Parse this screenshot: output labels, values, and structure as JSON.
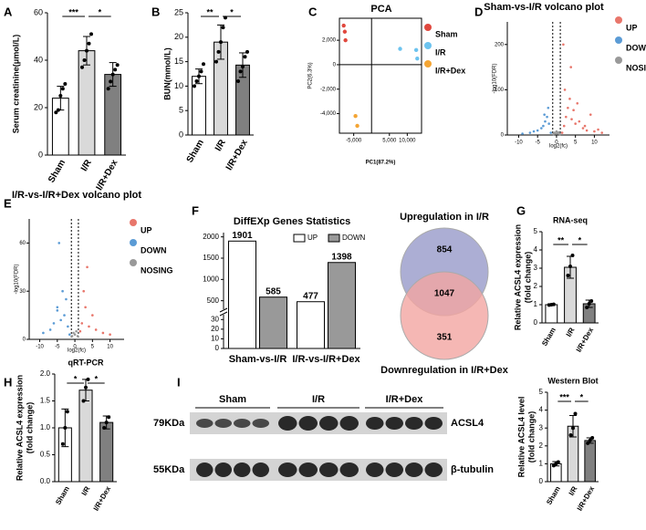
{
  "panel_labels": [
    "A",
    "B",
    "C",
    "D",
    "E",
    "F",
    "G",
    "H",
    "I"
  ],
  "blot": {
    "markers": [
      "79KDa",
      "55KDa"
    ],
    "groups": [
      "Sham",
      "I/R",
      "I/R+Dex"
    ],
    "proteins": [
      "ACSL4",
      "β-tubulin"
    ]
  },
  "chart_data": [
    {
      "type": "bar",
      "ylabel": "Serum creatinine(μmol/L)",
      "categories": [
        "Sham",
        "I/R",
        "I/R+Dex"
      ],
      "values": [
        24,
        44,
        34
      ],
      "errors": [
        5,
        6,
        5
      ],
      "points": [
        [
          18,
          19,
          25,
          28,
          30
        ],
        [
          37,
          40,
          44,
          47,
          51
        ],
        [
          28,
          31,
          34,
          36,
          38
        ]
      ],
      "colors": [
        "#ffffff",
        "#d9d9d9",
        "#808080"
      ],
      "ylim": [
        0,
        60
      ],
      "yticks": [
        0,
        20,
        40,
        60
      ],
      "significance": [
        "***",
        "*"
      ]
    },
    {
      "type": "bar",
      "ylabel": "BUN(mmol/L)",
      "categories": [
        "Sham",
        "I/R",
        "I/R+Dex"
      ],
      "values": [
        12,
        19,
        14.3
      ],
      "errors": [
        1.5,
        3.5,
        2.5
      ],
      "points": [
        [
          10,
          11,
          12,
          13,
          14.5
        ],
        [
          15,
          17,
          19,
          22,
          24
        ],
        [
          11,
          13,
          14,
          16,
          17
        ]
      ],
      "colors": [
        "#ffffff",
        "#d9d9d9",
        "#808080"
      ],
      "ylim": [
        0,
        25
      ],
      "yticks": [
        0,
        5,
        10,
        15,
        20,
        25
      ],
      "significance": [
        "**",
        "*"
      ]
    },
    {
      "type": "scatter",
      "title": "PCA",
      "xlabel": "PC1(87.2%)",
      "ylabel": "PC2(6.3%)",
      "frame": true,
      "zero_lines": true,
      "xlim": [
        -9000,
        14000
      ],
      "ylim": [
        -5600,
        3800
      ],
      "xticks": [
        {
          "value": -5000,
          "label": "-5,000"
        },
        {
          "value": 5000,
          "label": "5,000"
        },
        {
          "value": 10000,
          "label": "10,000"
        }
      ],
      "yticks": [
        {
          "value": -4000,
          "label": "-4,000"
        },
        {
          "value": -2000,
          "label": "-2,000"
        },
        0,
        {
          "value": 2000,
          "label": "2,000"
        }
      ],
      "series": [
        {
          "name": "Sham",
          "color": "#e0483e",
          "x": [
            -7800,
            -7500,
            -7300
          ],
          "y": [
            3200,
            2700,
            2000
          ]
        },
        {
          "name": "I/R",
          "color": "#6cc3ef",
          "x": [
            8000,
            12500,
            12800
          ],
          "y": [
            1300,
            1200,
            500
          ]
        },
        {
          "name": "I/R+Dex",
          "color": "#f4a534",
          "x": [
            -4500,
            -4000
          ],
          "y": [
            -4200,
            -5000
          ]
        }
      ]
    },
    {
      "type": "scatter",
      "title": "Sham-vs-I/R volcano plot",
      "xlabel": "log2(fc)",
      "ylabel": "-log10(FDR)",
      "frame": false,
      "vlines": [
        -1,
        1
      ],
      "xlim": [
        -13,
        14
      ],
      "ylim": [
        0,
        250
      ],
      "xticks": [
        -10,
        -5,
        0,
        5,
        10
      ],
      "yticks": [
        0,
        100,
        200
      ],
      "series": [
        {
          "name": "UP",
          "color": "#e8766b",
          "x": [
            1.5,
            2,
            2.5,
            3,
            3.5,
            4,
            4.5,
            5,
            6,
            7,
            8,
            9,
            10,
            11,
            12,
            2.2,
            3.8,
            5.5,
            7.5,
            1.8
          ],
          "y": [
            5,
            20,
            40,
            60,
            80,
            35,
            55,
            25,
            30,
            15,
            10,
            45,
            8,
            12,
            5,
            100,
            150,
            70,
            20,
            200
          ]
        },
        {
          "name": "DOWN",
          "color": "#5b9bd5",
          "x": [
            -1.5,
            -2,
            -2.5,
            -3,
            -3.5,
            -4,
            -5,
            -6,
            -7,
            -9,
            -2.2,
            -3.2
          ],
          "y": [
            5,
            25,
            40,
            30,
            20,
            15,
            10,
            8,
            5,
            3,
            60,
            45
          ]
        },
        {
          "name": "NOSING",
          "color": "#999999",
          "x": [
            -0.8,
            -0.5,
            -0.2,
            0,
            0.3,
            0.6,
            0.9
          ],
          "y": [
            2,
            5,
            3,
            8,
            4,
            6,
            2
          ]
        }
      ]
    },
    {
      "type": "scatter",
      "title": "I/R-vs-I/R+Dex volcano plot",
      "xlabel": "log2(fc)",
      "ylabel": "-log10(FDR)",
      "frame": false,
      "vlines": [
        -1,
        1
      ],
      "xlim": [
        -13,
        14
      ],
      "ylim": [
        0,
        75
      ],
      "xticks": [
        -10,
        -5,
        0,
        5,
        10
      ],
      "yticks": [
        0,
        30,
        60
      ],
      "series": [
        {
          "name": "UP",
          "color": "#e8766b",
          "x": [
            1.5,
            2,
            3,
            4,
            5,
            6,
            8,
            10,
            2.5,
            3.5
          ],
          "y": [
            5,
            10,
            20,
            8,
            15,
            6,
            4,
            3,
            30,
            45
          ]
        },
        {
          "name": "DOWN",
          "color": "#5b9bd5",
          "x": [
            -1.5,
            -2,
            -3,
            -4,
            -5,
            -6,
            -7,
            -9,
            -2.5,
            -3.5,
            -4.5,
            -5
          ],
          "y": [
            3,
            8,
            15,
            12,
            20,
            10,
            6,
            4,
            25,
            30,
            60,
            18
          ]
        },
        {
          "name": "NOSING",
          "color": "#999999",
          "x": [
            -0.8,
            -0.4,
            0,
            0.4,
            0.8
          ],
          "y": [
            2,
            4,
            3,
            5,
            2
          ]
        }
      ]
    },
    {
      "type": "grouped_bar",
      "title": "DiffEXp Genes Statistics",
      "categories": [
        "Sham-vs-I/R",
        "I/R-vs-I/R+Dex"
      ],
      "ylim": [
        0,
        2100
      ],
      "ybreak": [
        35,
        300
      ],
      "yticks": [
        0,
        10,
        20,
        30,
        500,
        1000,
        1500,
        2000
      ],
      "series": [
        {
          "name": "UP",
          "color": "#ffffff",
          "values": [
            1901,
            477
          ]
        },
        {
          "name": "DOWN",
          "color": "#999999",
          "values": [
            585,
            1398
          ]
        }
      ]
    },
    {
      "type": "venn",
      "sets": [
        "Upregulation in I/R",
        "Downregulation in I/R+Dex"
      ],
      "values": [
        854,
        1047,
        351
      ],
      "colors": [
        "#9ea0cc",
        "#f2a5a1"
      ]
    },
    {
      "type": "bar",
      "title": "RNA-seq",
      "ylabel": [
        "Relative ACSL4 expression",
        "(fold change)"
      ],
      "categories": [
        "Sham",
        "I/R",
        "I/R+Dex"
      ],
      "values": [
        1.0,
        3.05,
        1.05
      ],
      "errors": [
        0.05,
        0.6,
        0.2
      ],
      "points": [
        [
          0.98,
          1.0,
          1.02
        ],
        [
          2.6,
          3.1,
          3.7
        ],
        [
          0.85,
          1.05,
          1.2
        ]
      ],
      "colors": [
        "#ffffff",
        "#d9d9d9",
        "#808080"
      ],
      "ylim": [
        0,
        5
      ],
      "yticks": [
        0,
        1,
        2,
        3,
        4,
        5
      ],
      "significance": [
        "**",
        "*"
      ]
    },
    {
      "type": "bar",
      "title": "qRT-PCR",
      "ylabel": [
        "Relative ACSL4 expression",
        "(fold change)"
      ],
      "categories": [
        "Sham",
        "I/R",
        "I/R+Dex"
      ],
      "values": [
        1.0,
        1.7,
        1.1
      ],
      "errors": [
        0.35,
        0.2,
        0.12
      ],
      "points": [
        [
          0.7,
          1.0,
          1.3
        ],
        [
          1.5,
          1.75,
          1.9
        ],
        [
          1.0,
          1.1,
          1.2
        ]
      ],
      "colors": [
        "#ffffff",
        "#d9d9d9",
        "#808080"
      ],
      "ylim": [
        0,
        2
      ],
      "yticks": [
        {
          "value": 0,
          "label": "0.0"
        },
        {
          "value": 0.5,
          "label": "0.5"
        },
        {
          "value": 1,
          "label": "1.0"
        },
        {
          "value": 1.5,
          "label": "1.5"
        },
        {
          "value": 2,
          "label": "2.0"
        }
      ],
      "significance": [
        "*",
        "*"
      ]
    },
    {
      "type": "bar",
      "title": "Western Blot",
      "ylabel": [
        "Relative ACSL4 level",
        "(fold change)"
      ],
      "categories": [
        "Sham",
        "I/R",
        "I/R+Dex"
      ],
      "values": [
        1.0,
        3.1,
        2.3
      ],
      "errors": [
        0.12,
        0.6,
        0.15
      ],
      "points": [
        [
          0.9,
          1.0,
          1.1
        ],
        [
          2.6,
          3.0,
          3.8
        ],
        [
          2.15,
          2.3,
          2.45
        ]
      ],
      "colors": [
        "#ffffff",
        "#d9d9d9",
        "#808080"
      ],
      "ylim": [
        0,
        5
      ],
      "yticks": [
        0,
        1,
        2,
        3,
        4,
        5
      ],
      "significance": [
        "***",
        "*"
      ]
    }
  ]
}
